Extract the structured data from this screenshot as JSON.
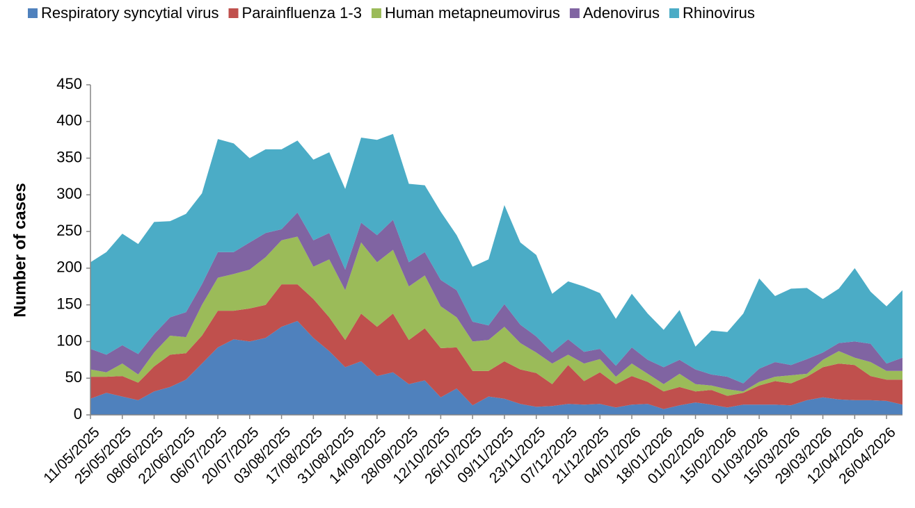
{
  "chart_data": {
    "type": "stacked-area",
    "y_label": "Number of cases",
    "categories": [
      "11/05/2025",
      null,
      "25/05/2025",
      null,
      "08/06/2025",
      null,
      "22/06/2025",
      null,
      "06/07/2025",
      null,
      "20/07/2025",
      null,
      "03/08/2025",
      null,
      "17/08/2025",
      null,
      "31/08/2025",
      null,
      "14/09/2025",
      null,
      "28/09/2025",
      null,
      "12/10/2025",
      null,
      "26/10/2025",
      null,
      "09/11/2025",
      null,
      "23/11/2025",
      null,
      "07/12/2025",
      null,
      "21/12/2025",
      null,
      "04/01/2026",
      null,
      "18/01/2026",
      null,
      "01/02/2026",
      null,
      "15/02/2026",
      null,
      "01/03/2026",
      null,
      "15/03/2026",
      null,
      "29/03/2026",
      null,
      "12/04/2026",
      null,
      "26/04/2026",
      null
    ],
    "series": [
      {
        "name": "Respiratory syncytial virus",
        "color": "#4f81bd",
        "values": [
          22,
          30,
          25,
          20,
          32,
          38,
          48,
          70,
          92,
          103,
          100,
          105,
          120,
          128,
          105,
          87,
          65,
          73,
          53,
          58,
          42,
          47,
          24,
          36,
          13,
          25,
          22,
          15,
          11,
          12,
          15,
          14,
          15,
          10,
          14,
          15,
          8,
          13,
          17,
          14,
          10,
          14,
          14,
          14,
          13,
          20,
          24,
          21,
          20,
          20,
          19,
          14
        ]
      },
      {
        "name": "Parainfluenza 1-3",
        "color": "#c0504d",
        "values": [
          30,
          22,
          28,
          24,
          34,
          44,
          36,
          38,
          50,
          39,
          45,
          45,
          58,
          50,
          53,
          46,
          37,
          65,
          67,
          80,
          60,
          71,
          67,
          56,
          47,
          35,
          51,
          47,
          46,
          30,
          53,
          32,
          43,
          32,
          39,
          30,
          24,
          25,
          15,
          20,
          16,
          16,
          26,
          32,
          30,
          32,
          41,
          49,
          48,
          33,
          29,
          34
        ]
      },
      {
        "name": "Human metapneumovirus",
        "color": "#9bbb59",
        "values": [
          10,
          6,
          17,
          11,
          19,
          26,
          22,
          42,
          45,
          50,
          53,
          65,
          60,
          65,
          44,
          79,
          68,
          97,
          88,
          87,
          73,
          72,
          57,
          41,
          40,
          42,
          47,
          36,
          28,
          28,
          14,
          24,
          18,
          10,
          17,
          11,
          10,
          18,
          10,
          6,
          9,
          2,
          5,
          6,
          11,
          4,
          10,
          17,
          10,
          19,
          12,
          12
        ]
      },
      {
        "name": "Adenovirus",
        "color": "#8064a2",
        "values": [
          28,
          24,
          25,
          28,
          25,
          25,
          34,
          28,
          35,
          30,
          37,
          33,
          15,
          33,
          36,
          36,
          28,
          27,
          37,
          41,
          33,
          32,
          36,
          37,
          27,
          20,
          31,
          25,
          22,
          15,
          21,
          16,
          14,
          15,
          22,
          19,
          23,
          19,
          20,
          15,
          17,
          11,
          18,
          20,
          14,
          20,
          10,
          11,
          22,
          25,
          10,
          18
        ]
      },
      {
        "name": "Rhinovirus",
        "color": "#4bacc6",
        "values": [
          118,
          140,
          152,
          150,
          153,
          131,
          134,
          124,
          154,
          148,
          115,
          114,
          109,
          98,
          110,
          110,
          110,
          116,
          130,
          117,
          107,
          91,
          93,
          75,
          75,
          90,
          135,
          112,
          111,
          80,
          79,
          89,
          76,
          64,
          73,
          63,
          51,
          68,
          31,
          60,
          61,
          95,
          123,
          90,
          104,
          97,
          73,
          74,
          100,
          71,
          78,
          92
        ]
      }
    ],
    "ylim": [
      0,
      450
    ],
    "yticks": [
      0,
      50,
      100,
      150,
      200,
      250,
      300,
      350,
      400,
      450
    ]
  }
}
